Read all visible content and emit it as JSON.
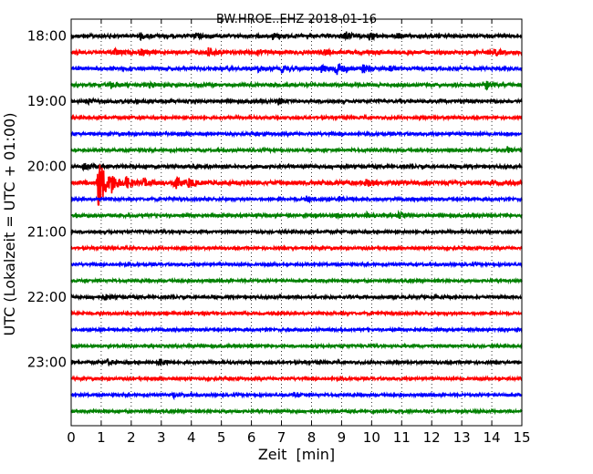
{
  "chart_data": {
    "type": "line",
    "title": "BW.HROE..EHZ 2018-01-16",
    "xlabel": "Zeit  [min]",
    "ylabel": "UTC (Lokalzeit = UTC + 01:00)",
    "xlim": [
      0,
      15
    ],
    "x_ticks": [
      "0",
      "1",
      "2",
      "3",
      "4",
      "5",
      "6",
      "7",
      "8",
      "9",
      "10",
      "11",
      "12",
      "13",
      "14",
      "15"
    ],
    "y_ticks": [
      "18:00",
      "19:00",
      "20:00",
      "21:00",
      "22:00",
      "23:00"
    ],
    "grid": "vertical dotted",
    "colors": [
      "#000000",
      "#ff0000",
      "#0000ff",
      "#008000"
    ],
    "traces": [
      {
        "start": "18:00",
        "color": "#000000",
        "noise": 1.6,
        "events": [
          {
            "t": 2.3,
            "amp": 3
          },
          {
            "t": 4.1,
            "amp": 3
          },
          {
            "t": 6.7,
            "amp": 3
          },
          {
            "t": 9.1,
            "amp": 5
          },
          {
            "t": 9.9,
            "amp": 4
          },
          {
            "t": 10.8,
            "amp": 3
          }
        ]
      },
      {
        "start": "18:15",
        "color": "#ff0000",
        "noise": 1.8,
        "events": [
          {
            "t": 1.4,
            "amp": 4
          },
          {
            "t": 2.3,
            "amp": 3
          },
          {
            "t": 4.5,
            "amp": 6
          },
          {
            "t": 6.2,
            "amp": 3
          },
          {
            "t": 8.4,
            "amp": 3
          },
          {
            "t": 14.1,
            "amp": 3
          }
        ]
      },
      {
        "start": "18:30",
        "color": "#0000ff",
        "noise": 1.6,
        "events": [
          {
            "t": 6.2,
            "amp": 3
          },
          {
            "t": 7.0,
            "amp": 4
          },
          {
            "t": 8.3,
            "amp": 4
          },
          {
            "t": 8.8,
            "amp": 9
          },
          {
            "t": 9.7,
            "amp": 5
          },
          {
            "t": 10.6,
            "amp": 3
          }
        ]
      },
      {
        "start": "18:45",
        "color": "#008000",
        "noise": 1.5,
        "events": [
          {
            "t": 1.3,
            "amp": 4
          },
          {
            "t": 2.6,
            "amp": 3
          },
          {
            "t": 13.8,
            "amp": 4
          }
        ]
      },
      {
        "start": "19:00",
        "color": "#000000",
        "noise": 1.5,
        "events": [
          {
            "t": 0.5,
            "amp": 3
          },
          {
            "t": 6.9,
            "amp": 3
          }
        ]
      },
      {
        "start": "19:15",
        "color": "#ff0000",
        "noise": 1.3,
        "events": []
      },
      {
        "start": "19:30",
        "color": "#0000ff",
        "noise": 1.3,
        "events": []
      },
      {
        "start": "19:45",
        "color": "#008000",
        "noise": 1.3,
        "events": [
          {
            "t": 14.5,
            "amp": 4
          }
        ]
      },
      {
        "start": "20:00",
        "color": "#000000",
        "noise": 1.5,
        "events": [
          {
            "t": 0.4,
            "amp": 4
          }
        ]
      },
      {
        "start": "20:15",
        "color": "#ff0000",
        "noise": 2.0,
        "events": [
          {
            "t": 0.9,
            "amp": 36
          },
          {
            "t": 1.3,
            "amp": 10
          },
          {
            "t": 1.8,
            "amp": 6
          },
          {
            "t": 2.4,
            "amp": 4
          },
          {
            "t": 3.4,
            "amp": 8
          },
          {
            "t": 3.9,
            "amp": 4
          },
          {
            "t": 9.8,
            "amp": 4
          }
        ]
      },
      {
        "start": "20:30",
        "color": "#0000ff",
        "noise": 1.3,
        "events": [
          {
            "t": 7.8,
            "amp": 4
          },
          {
            "t": 8.9,
            "amp": 3
          }
        ]
      },
      {
        "start": "20:45",
        "color": "#008000",
        "noise": 1.4,
        "events": [
          {
            "t": 8.8,
            "amp": 3
          },
          {
            "t": 9.8,
            "amp": 3
          },
          {
            "t": 10.9,
            "amp": 3
          }
        ]
      },
      {
        "start": "21:00",
        "color": "#000000",
        "noise": 1.3,
        "events": []
      },
      {
        "start": "21:15",
        "color": "#ff0000",
        "noise": 1.2,
        "events": []
      },
      {
        "start": "21:30",
        "color": "#0000ff",
        "noise": 1.2,
        "events": []
      },
      {
        "start": "21:45",
        "color": "#008000",
        "noise": 1.2,
        "events": []
      },
      {
        "start": "22:00",
        "color": "#000000",
        "noise": 1.4,
        "events": [
          {
            "t": 1.1,
            "amp": 3
          }
        ]
      },
      {
        "start": "22:15",
        "color": "#ff0000",
        "noise": 1.2,
        "events": []
      },
      {
        "start": "22:30",
        "color": "#0000ff",
        "noise": 1.2,
        "events": []
      },
      {
        "start": "22:45",
        "color": "#008000",
        "noise": 1.2,
        "events": []
      },
      {
        "start": "23:00",
        "color": "#000000",
        "noise": 1.3,
        "events": [
          {
            "t": 1.2,
            "amp": 3
          },
          {
            "t": 2.9,
            "amp": 5
          }
        ]
      },
      {
        "start": "23:15",
        "color": "#ff0000",
        "noise": 1.2,
        "events": []
      },
      {
        "start": "23:30",
        "color": "#0000ff",
        "noise": 1.2,
        "events": [
          {
            "t": 3.4,
            "amp": 3
          },
          {
            "t": 7.4,
            "amp": 3
          }
        ]
      },
      {
        "start": "23:45",
        "color": "#008000",
        "noise": 1.2,
        "events": []
      }
    ]
  }
}
